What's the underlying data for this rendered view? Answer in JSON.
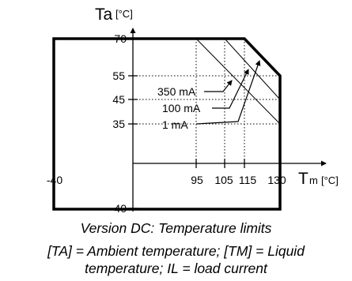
{
  "axes": {
    "y": {
      "symbol": "Ta",
      "unit": "[°C]",
      "ticks": [
        "70",
        "55",
        "45",
        "35",
        "-40"
      ]
    },
    "x": {
      "symbol": "T",
      "subscript": "m",
      "unit": "[°C]",
      "ticks": [
        "-40",
        "95",
        "105",
        "115",
        "130"
      ]
    }
  },
  "region": {
    "boundary_points": [
      [
        -40,
        70
      ],
      [
        115,
        70
      ],
      [
        130,
        55
      ],
      [
        130,
        -40
      ],
      [
        -40,
        -40
      ]
    ]
  },
  "derating_lines": [
    {
      "label": "350 mA",
      "from": [
        95,
        70
      ],
      "to": [
        130,
        35
      ]
    },
    {
      "label": "100 mA",
      "from": [
        105,
        70
      ],
      "to": [
        130,
        45
      ]
    },
    {
      "label": "1 mA",
      "from": [
        115,
        70
      ],
      "to": [
        130,
        55
      ]
    }
  ],
  "caption": {
    "line1": "Version DC: Temperature limits",
    "line2": "[TA] = Ambient temperature; [TM] = Liquid",
    "line3": "temperature; IL = load current"
  }
}
